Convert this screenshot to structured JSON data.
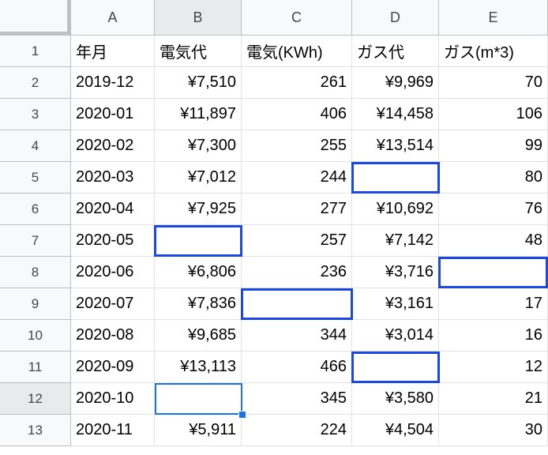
{
  "columns": [
    "A",
    "B",
    "C",
    "D",
    "E"
  ],
  "rows": [
    "1",
    "2",
    "3",
    "4",
    "5",
    "6",
    "7",
    "8",
    "9",
    "10",
    "11",
    "12",
    "13"
  ],
  "cells": [
    [
      "年月",
      "電気代",
      "電気(KWh)",
      "ガス代",
      "ガス(m*3)"
    ],
    [
      "2019-12",
      "¥7,510",
      "261",
      "¥9,969",
      "70"
    ],
    [
      "2020-01",
      "¥11,897",
      "406",
      "¥14,458",
      "106"
    ],
    [
      "2020-02",
      "¥7,300",
      "255",
      "¥13,514",
      "99"
    ],
    [
      "2020-03",
      "¥7,012",
      "244",
      "",
      "80"
    ],
    [
      "2020-04",
      "¥7,925",
      "277",
      "¥10,692",
      "76"
    ],
    [
      "2020-05",
      "",
      "257",
      "¥7,142",
      "48"
    ],
    [
      "2020-06",
      "¥6,806",
      "236",
      "¥3,716",
      ""
    ],
    [
      "2020-07",
      "¥7,836",
      "",
      "¥3,161",
      "17"
    ],
    [
      "2020-08",
      "¥9,685",
      "344",
      "¥3,014",
      "16"
    ],
    [
      "2020-09",
      "¥13,113",
      "466",
      "",
      "12"
    ],
    [
      "2020-10",
      "",
      "345",
      "¥3,580",
      "21"
    ],
    [
      "2020-11",
      "¥5,911",
      "224",
      "¥4,504",
      "30"
    ]
  ],
  "selection": {
    "active_cell": "B12",
    "selected_column": "B",
    "selected_row": "12"
  },
  "highlighted_empty_cells": [
    "D5",
    "B7",
    "E8",
    "C9",
    "D11"
  ],
  "colors": {
    "highlight_border": "#1a47e5",
    "selection_border": "#1a73e8",
    "header_bg": "#f8f9fa",
    "selected_header_bg": "#e8eaed"
  }
}
